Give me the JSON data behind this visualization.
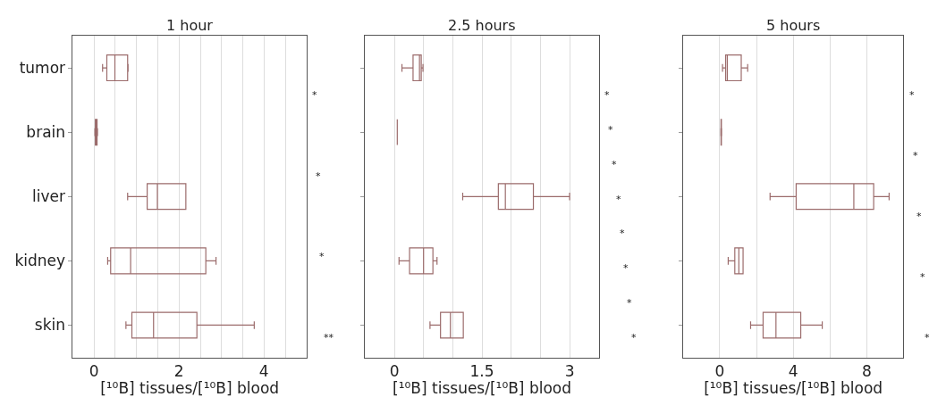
{
  "chart_data": [
    {
      "type": "box",
      "title": "1 hour",
      "orientation": "horizontal",
      "xlabel": "[¹⁰B] tissues/[¹⁰B] blood",
      "categories": [
        "tumor",
        "brain",
        "liver",
        "kidney",
        "skin"
      ],
      "color": "#9b6b6b",
      "xlim": [
        -0.5,
        5
      ],
      "xticks": [
        0,
        {
          "value": 0.5,
          "label": null
        },
        {
          "value": 1,
          "label": null
        },
        {
          "value": 1.5,
          "label": null
        },
        2,
        {
          "value": 2.5,
          "label": null
        },
        {
          "value": 3,
          "label": null
        },
        {
          "value": 3.5,
          "label": null
        },
        4,
        {
          "value": 4.5,
          "label": null
        }
      ],
      "grid": "x",
      "boxes": [
        {
          "low": 0.2,
          "q1": 0.3,
          "median": 0.49,
          "q3": 0.79,
          "high": 0.8
        },
        {
          "low": 0.02,
          "q1": 0.03,
          "median": 0.05,
          "q3": 0.07,
          "high": 0.08
        },
        {
          "low": 0.79,
          "q1": 1.25,
          "median": 1.49,
          "q3": 2.16,
          "high": 2.16
        },
        {
          "low": 0.32,
          "q1": 0.39,
          "median": 0.86,
          "q3": 2.63,
          "high": 2.87
        },
        {
          "low": 0.75,
          "q1": 0.89,
          "median": 1.4,
          "q3": 2.42,
          "high": 3.77
        }
      ],
      "annotations": [
        "*",
        "*",
        "*",
        "**"
      ]
    },
    {
      "type": "box",
      "title": "2.5 hours",
      "orientation": "horizontal",
      "xlabel": "[¹⁰B] tissues/[¹⁰B] blood",
      "categories": [
        null,
        null,
        null,
        null,
        null
      ],
      "color": "#9b6b6b",
      "xlim": [
        -0.5,
        3.5
      ],
      "xticks": [
        0,
        {
          "value": 0.5,
          "label": null
        },
        {
          "value": 1,
          "label": null
        },
        1.5,
        {
          "value": 2,
          "label": null
        },
        {
          "value": 2.5,
          "label": null
        },
        3
      ],
      "grid": "x",
      "boxes": [
        {
          "low": 0.13,
          "q1": 0.32,
          "median": 0.43,
          "q3": 0.46,
          "high": 0.49
        },
        {
          "low": 0.05,
          "q1": 0.05,
          "median": 0.05,
          "q3": 0.05,
          "high": 0.05
        },
        {
          "low": 1.17,
          "q1": 1.78,
          "median": 1.9,
          "q3": 2.38,
          "high": 3.0
        },
        {
          "low": 0.08,
          "q1": 0.26,
          "median": 0.5,
          "q3": 0.66,
          "high": 0.73
        },
        {
          "low": 0.61,
          "q1": 0.79,
          "median": 0.96,
          "q3": 1.18,
          "high": 1.18
        }
      ],
      "annotations": [
        "*",
        "*",
        "*",
        "*",
        "*",
        "*",
        "*",
        "*"
      ]
    },
    {
      "type": "box",
      "title": "5 hours",
      "orientation": "horizontal",
      "xlabel": "[¹⁰B] tissues/[¹⁰B] blood",
      "categories": [
        null,
        null,
        null,
        null,
        null
      ],
      "color": "#9b6b6b",
      "xlim": [
        -2,
        10
      ],
      "xticks": [
        0,
        {
          "value": 2,
          "label": null
        },
        4,
        {
          "value": 6,
          "label": null
        },
        8
      ],
      "grid": "x",
      "boxes": [
        {
          "low": 0.15,
          "q1": 0.32,
          "median": 0.41,
          "q3": 1.17,
          "high": 1.52
        },
        {
          "low": 0.06,
          "q1": 0.07,
          "median": 0.08,
          "q3": 0.09,
          "high": 0.1
        },
        {
          "low": 2.74,
          "q1": 4.16,
          "median": 7.3,
          "q3": 8.38,
          "high": 9.22
        },
        {
          "low": 0.46,
          "q1": 0.82,
          "median": 1.04,
          "q3": 1.27,
          "high": 1.27
        },
        {
          "low": 1.68,
          "q1": 2.36,
          "median": 3.06,
          "q3": 4.41,
          "high": 5.58
        }
      ],
      "annotations": [
        "*",
        "*",
        "*",
        "*",
        "*"
      ]
    }
  ]
}
